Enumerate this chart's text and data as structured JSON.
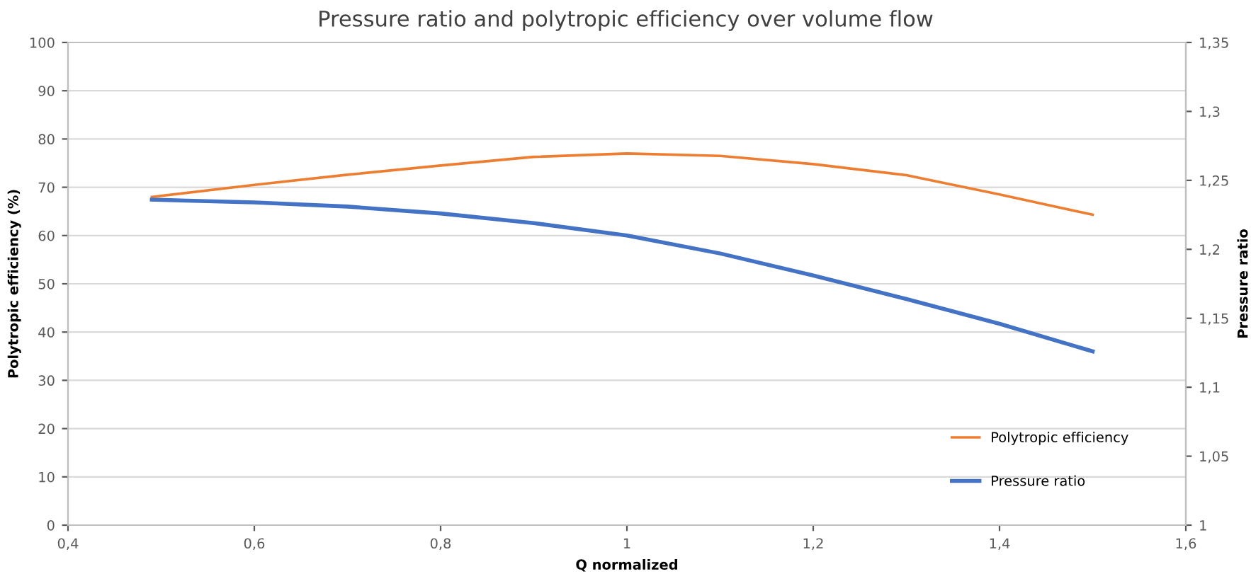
{
  "chart_data": {
    "type": "line",
    "title": "Pressure ratio and polytropic efficiency over volume flow",
    "xlabel": "Q normalized",
    "ylabel": "Polytropic efficiency (%)",
    "y2label": "Pressure ratio",
    "x": [
      0.49,
      0.6,
      0.7,
      0.8,
      0.9,
      1.0,
      1.1,
      1.2,
      1.3,
      1.4,
      1.5
    ],
    "series": [
      {
        "name": "Polytropic efficiency",
        "color": "#ed7d31",
        "values": [
          68,
          70.5,
          72.6,
          74.5,
          76.3,
          77,
          76.5,
          74.8,
          72.5,
          68.5,
          64.3
        ]
      },
      {
        "name": "Pressure ratio",
        "color": "#4472c4",
        "axis": "y2",
        "values": [
          1.236,
          1.234,
          1.231,
          1.226,
          1.219,
          1.21,
          1.197,
          1.181,
          1.164,
          1.146,
          1.126
        ]
      }
    ],
    "xlim": [
      0.4,
      1.6
    ],
    "xticks": [
      {
        "value": 0.4,
        "label": "0,4"
      },
      {
        "value": 0.6,
        "label": "0,6"
      },
      {
        "value": 0.8,
        "label": "0,8"
      },
      1,
      {
        "value": 1.2,
        "label": "1,2"
      },
      {
        "value": 1.4,
        "label": "1,4"
      },
      {
        "value": 1.6,
        "label": "1,6"
      }
    ],
    "ylim": [
      0,
      100
    ],
    "yticks": [
      0,
      10,
      20,
      30,
      40,
      50,
      60,
      70,
      80,
      90,
      100
    ],
    "y2lim": [
      1,
      1.35
    ],
    "y2ticks": [
      1,
      {
        "value": 1.05,
        "label": "1,05"
      },
      {
        "value": 1.1,
        "label": "1,1"
      },
      {
        "value": 1.15,
        "label": "1,15"
      },
      {
        "value": 1.2,
        "label": "1,2"
      },
      {
        "value": 1.25,
        "label": "1,25"
      },
      {
        "value": 1.3,
        "label": "1,3"
      },
      {
        "value": 1.35,
        "label": "1,35"
      }
    ],
    "grid": "y",
    "legend": "bottom right",
    "marker": "none",
    "line_style": "solid"
  }
}
